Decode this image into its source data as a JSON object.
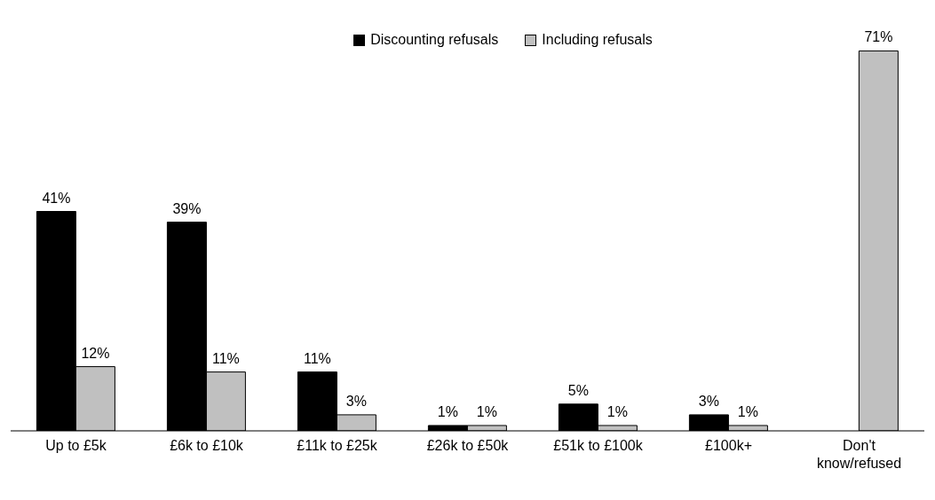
{
  "chart_data": {
    "type": "bar",
    "categories": [
      "Up to £5k",
      "£6k to £10k",
      "£11k to £25k",
      "£26k to £50k",
      "£51k to £100k",
      "£100k+",
      "Don't know/refused"
    ],
    "series": [
      {
        "name": "Discounting refusals",
        "color": "#000000",
        "values": [
          41,
          39,
          11,
          1,
          5,
          3,
          null
        ],
        "value_labels": [
          "41%",
          "39%",
          "11%",
          "1%",
          "5%",
          "3%",
          null
        ]
      },
      {
        "name": "Including refusals",
        "color": "#c0c0c0",
        "values": [
          12,
          11,
          3,
          1,
          1,
          1,
          71
        ],
        "value_labels": [
          "12%",
          "11%",
          "3%",
          "1%",
          "1%",
          "1%",
          "71%"
        ]
      }
    ],
    "legend": "top",
    "grid": false
  }
}
